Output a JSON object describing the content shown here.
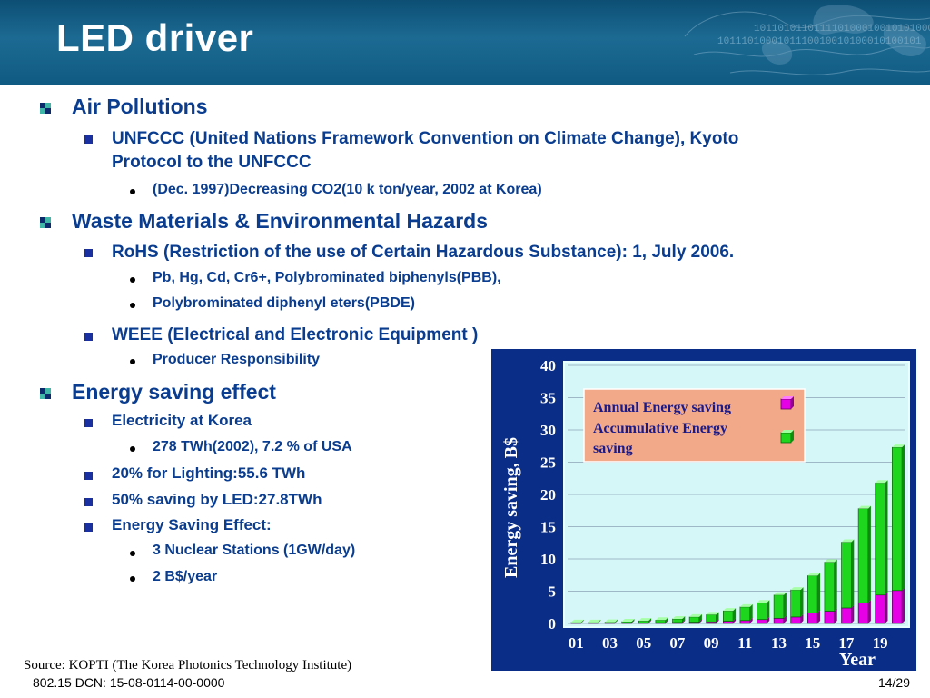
{
  "slide": {
    "title": "LED driver",
    "source": "Source: KOPTI (The Korea Photonics Technology Institute)",
    "footer_left": "802.15 DCN: 15-08-0114-00-0000",
    "footer_right": "14/29"
  },
  "header_binary": {
    "line1": "1011010110111101000100101010000100",
    "line2": "1011101000101110010010100010100101"
  },
  "bullets": {
    "b1": "Air Pollutions",
    "b1_1": "UNFCCC (United Nations Framework Convention on Climate Change), Kyoto",
    "b1_1_cont": "Protocol to the UNFCCC",
    "b1_1_1": "(Dec. 1997)Decreasing CO2(10 k ton/year, 2002 at Korea)",
    "b2": "Waste Materials & Environmental Hazards",
    "b2_1": "RoHS (Restriction of the use of Certain Hazardous Substance): 1, July 2006.",
    "b2_1_1": "Pb, Hg, Cd, Cr6+, Polybrominated biphenyls(PBB),",
    "b2_1_2": "Polybrominated diphenyl eters(PBDE)",
    "b2_2": "WEEE (Electrical and Electronic Equipment )",
    "b2_2_1": "Producer Responsibility",
    "b3": "Energy saving effect",
    "b3_1": "Electricity at Korea",
    "b3_1_1": "278 TWh(2002), 7.2 % of USA",
    "b3_2": "20% for Lighting:55.6 TWh",
    "b3_3": "50% saving by LED:27.8TWh",
    "b3_4": "Energy Saving Effect:",
    "b3_4_1": "3 Nuclear Stations (1GW/day)",
    "b3_4_2": "2 B$/year"
  },
  "chart_data": {
    "type": "bar",
    "stacked": true,
    "ylabel": "Energy saving, B$",
    "xlabel": "Year",
    "ylim": [
      0,
      40
    ],
    "yticks": [
      0,
      5,
      10,
      15,
      20,
      25,
      30,
      35,
      40
    ],
    "x_tick_labels": [
      "01",
      "03",
      "05",
      "07",
      "09",
      "11",
      "13",
      "15",
      "17",
      "19"
    ],
    "categories": [
      "01",
      "02",
      "03",
      "04",
      "05",
      "06",
      "07",
      "08",
      "09",
      "10",
      "11",
      "12",
      "13",
      "14",
      "15",
      "16",
      "17",
      "18",
      "19",
      "20"
    ],
    "series": [
      {
        "name": "Annual Energy saving",
        "values": [
          0.05,
          0.05,
          0.05,
          0.08,
          0.1,
          0.12,
          0.15,
          0.2,
          0.25,
          0.35,
          0.45,
          0.6,
          0.8,
          1.0,
          1.6,
          1.9,
          2.4,
          3.2,
          4.4,
          5.1
        ]
      },
      {
        "name": "Accumulative Energy saving",
        "values": [
          0.1,
          0.1,
          0.15,
          0.2,
          0.3,
          0.4,
          0.55,
          0.8,
          1.1,
          1.6,
          2.1,
          2.6,
          3.6,
          4.2,
          5.8,
          7.6,
          10.2,
          14.6,
          17.4,
          22.2
        ]
      }
    ],
    "legend": {
      "lines": [
        "Annual Energy saving",
        "Accumulative Energy",
        "saving"
      ],
      "position": "top-left"
    },
    "colors": {
      "annual": "#e600e6",
      "accumulative": "#1fd61f",
      "plot_bg": "#d6f7f7",
      "frame": "#0a2d88",
      "legend_bg": "#f2a98a"
    },
    "grid": true
  }
}
